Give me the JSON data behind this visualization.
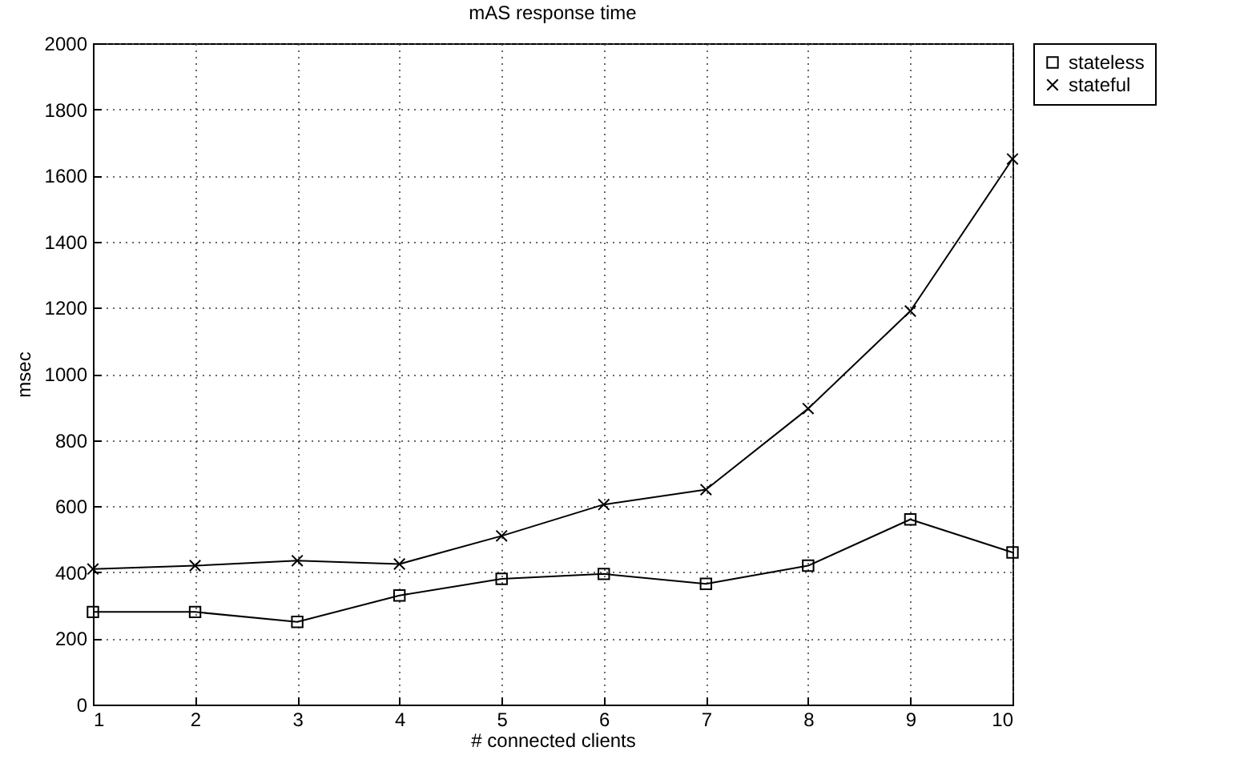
{
  "chart_data": {
    "type": "line",
    "title": "mAS response time",
    "xlabel": "# connected clients",
    "ylabel": "msec",
    "x": [
      1,
      2,
      3,
      4,
      5,
      6,
      7,
      8,
      9,
      10
    ],
    "series": [
      {
        "name": "stateless",
        "color": "#000000",
        "marker": "square",
        "values": [
          280,
          280,
          250,
          330,
          380,
          395,
          365,
          420,
          560,
          460
        ]
      },
      {
        "name": "stateful",
        "color": "#000000",
        "marker": "cross",
        "values": [
          410,
          420,
          435,
          425,
          510,
          605,
          650,
          895,
          1190,
          1650
        ]
      }
    ],
    "xlim": [
      1,
      10
    ],
    "xticks": [
      1,
      2,
      3,
      4,
      5,
      6,
      7,
      8,
      9,
      10
    ],
    "ylim": [
      0,
      2000
    ],
    "yticks": [
      0,
      200,
      400,
      600,
      800,
      1000,
      1200,
      1400,
      1600,
      1800,
      2000
    ],
    "grid": true,
    "legend": "top right",
    "line_style": "solid"
  }
}
